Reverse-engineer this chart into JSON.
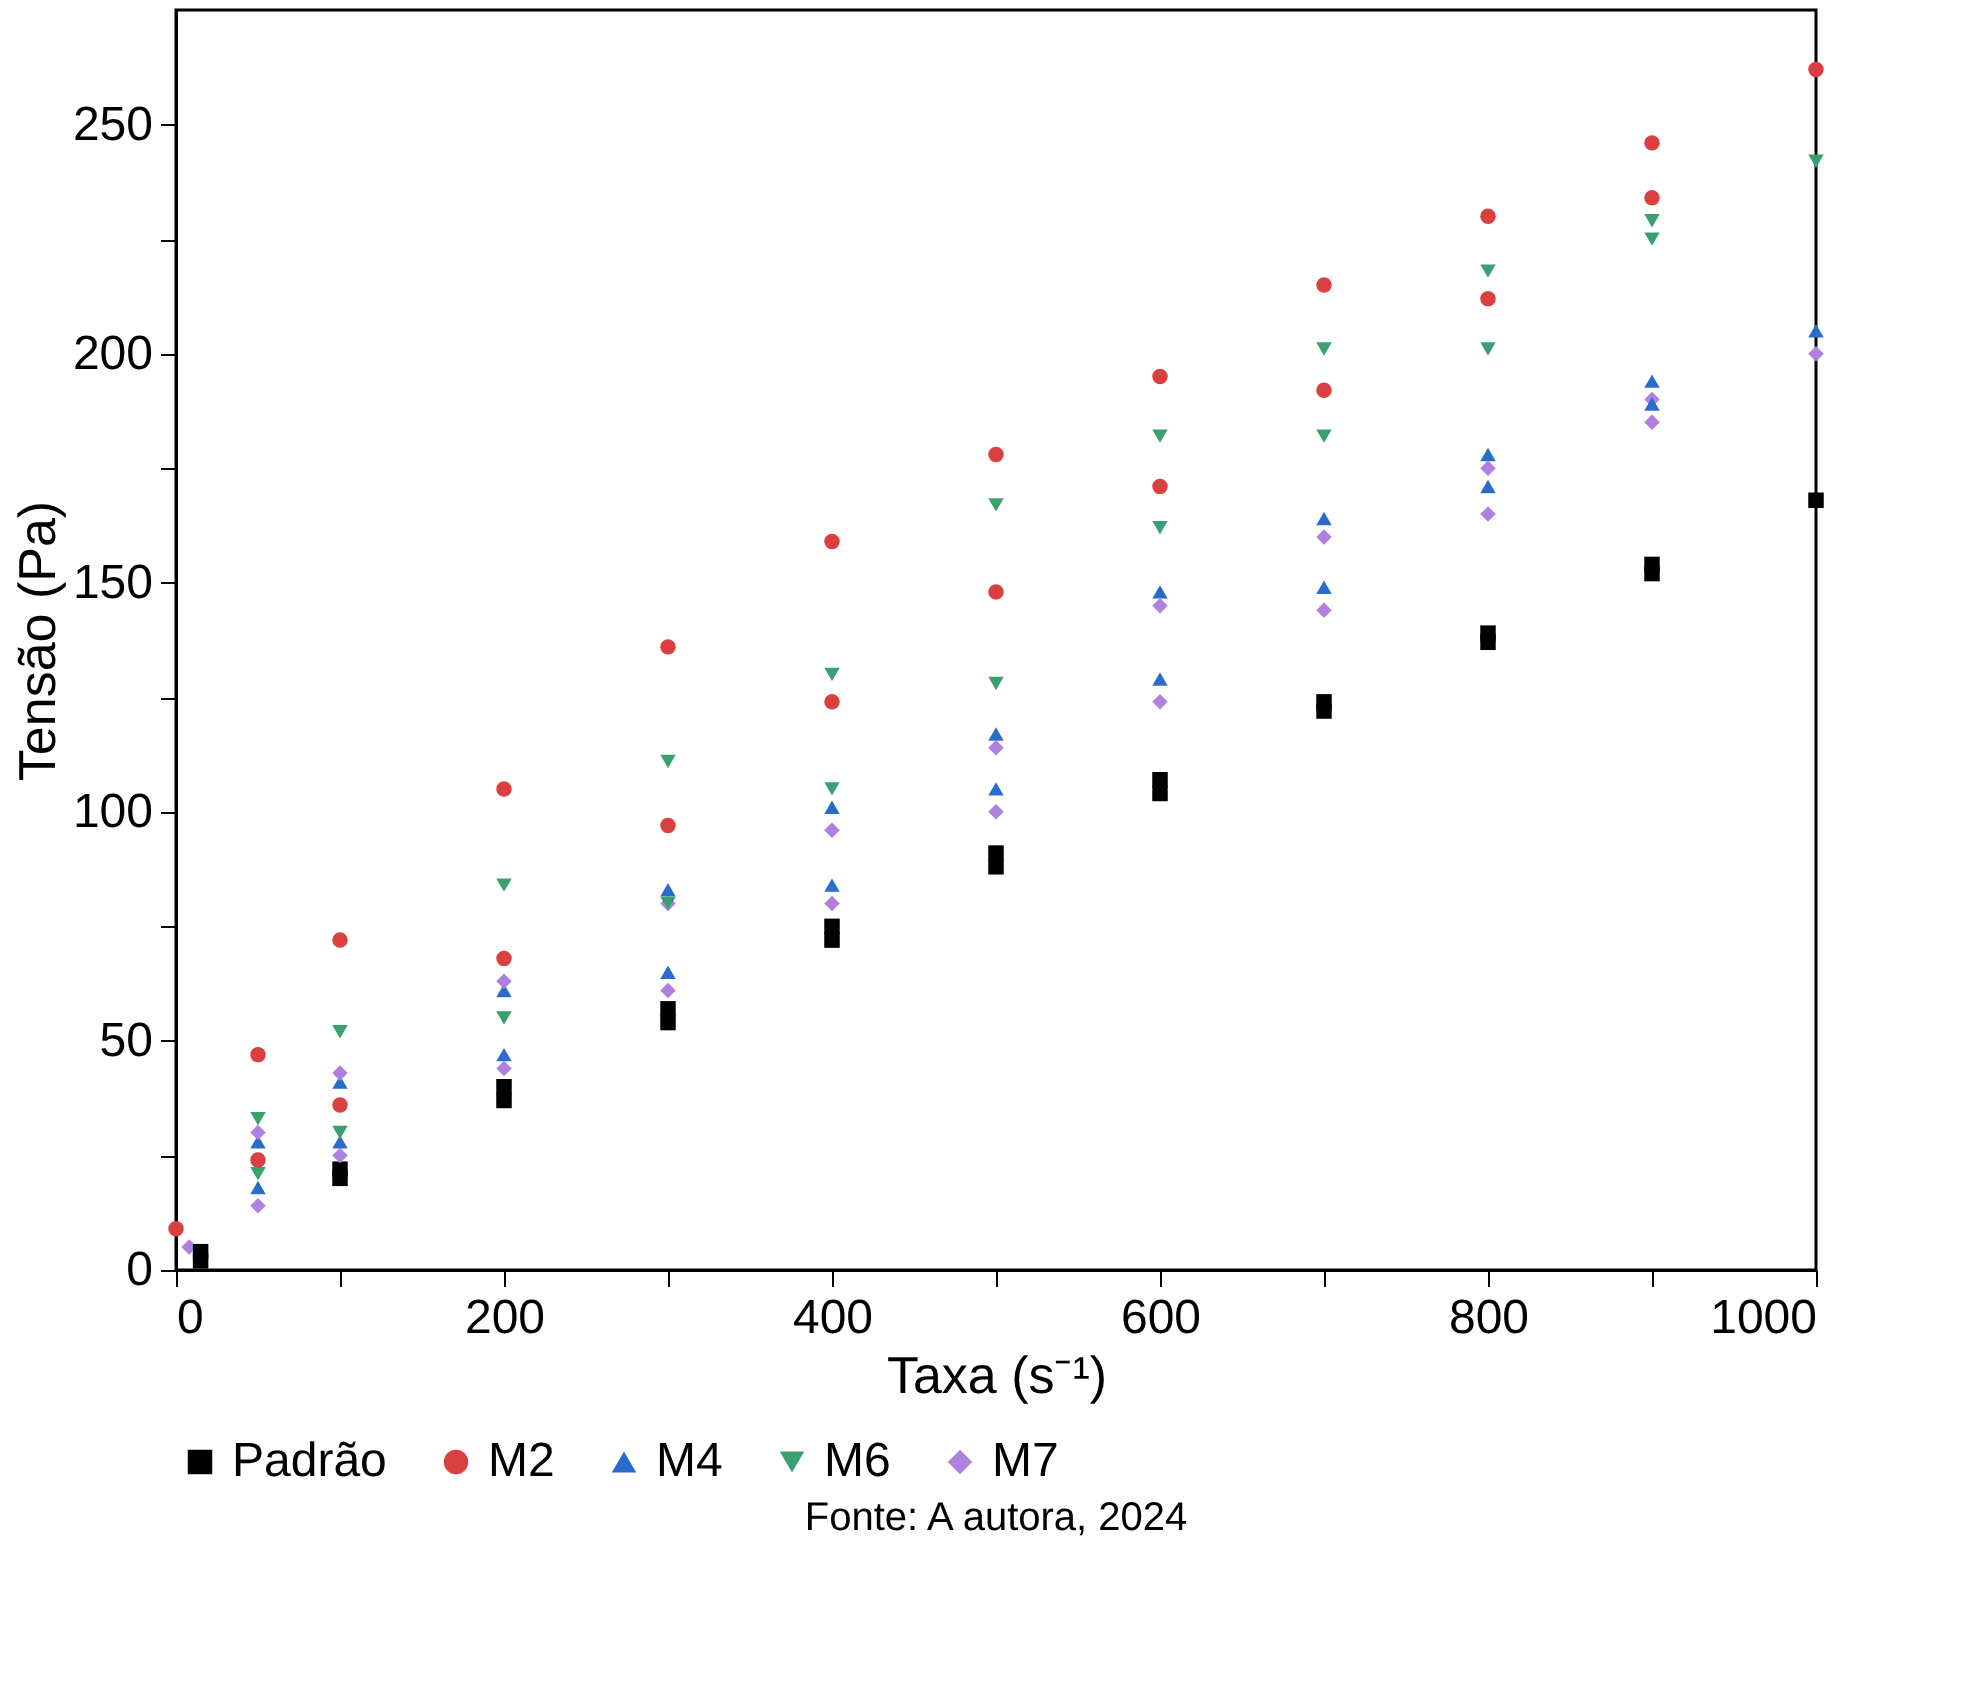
{
  "chart_data": {
    "type": "scatter",
    "xlabel": "Taxa (s⁻¹)",
    "ylabel": "Tensão (Pa)",
    "annotations": [
      "Fonte: A autora, 2024"
    ],
    "xlim": [
      0,
      1000
    ],
    "ylim": [
      0,
      275
    ],
    "xticks": [
      0,
      {
        "value": 100,
        "label": null
      },
      200,
      {
        "value": 300,
        "label": null
      },
      400,
      {
        "value": 500,
        "label": null
      },
      600,
      {
        "value": 700,
        "label": null
      },
      800,
      {
        "value": 900,
        "label": null
      },
      1000
    ],
    "yticks": [
      0,
      {
        "value": 25,
        "label": null
      },
      50,
      {
        "value": 75,
        "label": null
      },
      100,
      {
        "value": 125,
        "label": null
      },
      150,
      {
        "value": 175,
        "label": null
      },
      200,
      {
        "value": 225,
        "label": null
      },
      250
    ],
    "grid": false,
    "legend": "bottom",
    "series": [
      {
        "name": "Padrão",
        "color": "#000000",
        "marker": "square",
        "x": [
          15,
          100,
          200,
          300,
          400,
          500,
          600,
          700,
          800,
          900,
          1000,
          900,
          800,
          700,
          600,
          500,
          400,
          300,
          200,
          100,
          15
        ],
        "values": [
          2,
          20,
          37,
          54,
          72,
          88,
          104,
          122,
          137,
          152,
          168,
          154,
          139,
          124,
          107,
          91,
          75,
          57,
          40,
          22,
          4
        ]
      },
      {
        "name": "M2",
        "color": "#d9403f",
        "marker": "circle",
        "x": [
          0,
          50,
          100,
          200,
          300,
          400,
          500,
          600,
          700,
          800,
          900,
          1000,
          900,
          800,
          700,
          600,
          500,
          400,
          300,
          200,
          100,
          50
        ],
        "values": [
          9,
          47,
          72,
          105,
          136,
          159,
          178,
          195,
          215,
          230,
          246,
          262,
          234,
          212,
          192,
          171,
          148,
          124,
          97,
          68,
          36,
          24
        ]
      },
      {
        "name": "M4",
        "color": "#2a6ccc",
        "marker": "triangle",
        "x": [
          50,
          100,
          200,
          300,
          400,
          500,
          600,
          700,
          800,
          900,
          1000,
          900,
          800,
          700,
          600,
          500,
          400,
          300,
          200,
          100,
          50
        ],
        "values": [
          28,
          41,
          61,
          83,
          101,
          117,
          148,
          164,
          178,
          194,
          205,
          189,
          171,
          149,
          129,
          105,
          84,
          65,
          47,
          28,
          18
        ]
      },
      {
        "name": "M6",
        "color": "#3aa070",
        "marker": "triangle-down",
        "x": [
          50,
          100,
          200,
          300,
          400,
          500,
          600,
          700,
          800,
          900,
          1000,
          900,
          800,
          700,
          600,
          500,
          400,
          300,
          200,
          100,
          50
        ],
        "values": [
          33,
          52,
          84,
          111,
          130,
          167,
          182,
          201,
          218,
          229,
          242,
          225,
          201,
          182,
          162,
          128,
          105,
          80,
          55,
          30,
          21
        ]
      },
      {
        "name": "M7",
        "color": "#b080e0",
        "marker": "diamond",
        "x": [
          8,
          50,
          100,
          200,
          300,
          400,
          500,
          600,
          700,
          800,
          900,
          1000,
          900,
          800,
          700,
          600,
          500,
          400,
          300,
          200,
          100,
          50
        ],
        "values": [
          5,
          30,
          43,
          63,
          80,
          96,
          114,
          145,
          160,
          175,
          190,
          200,
          185,
          165,
          144,
          124,
          100,
          80,
          61,
          44,
          25,
          14
        ]
      }
    ]
  }
}
